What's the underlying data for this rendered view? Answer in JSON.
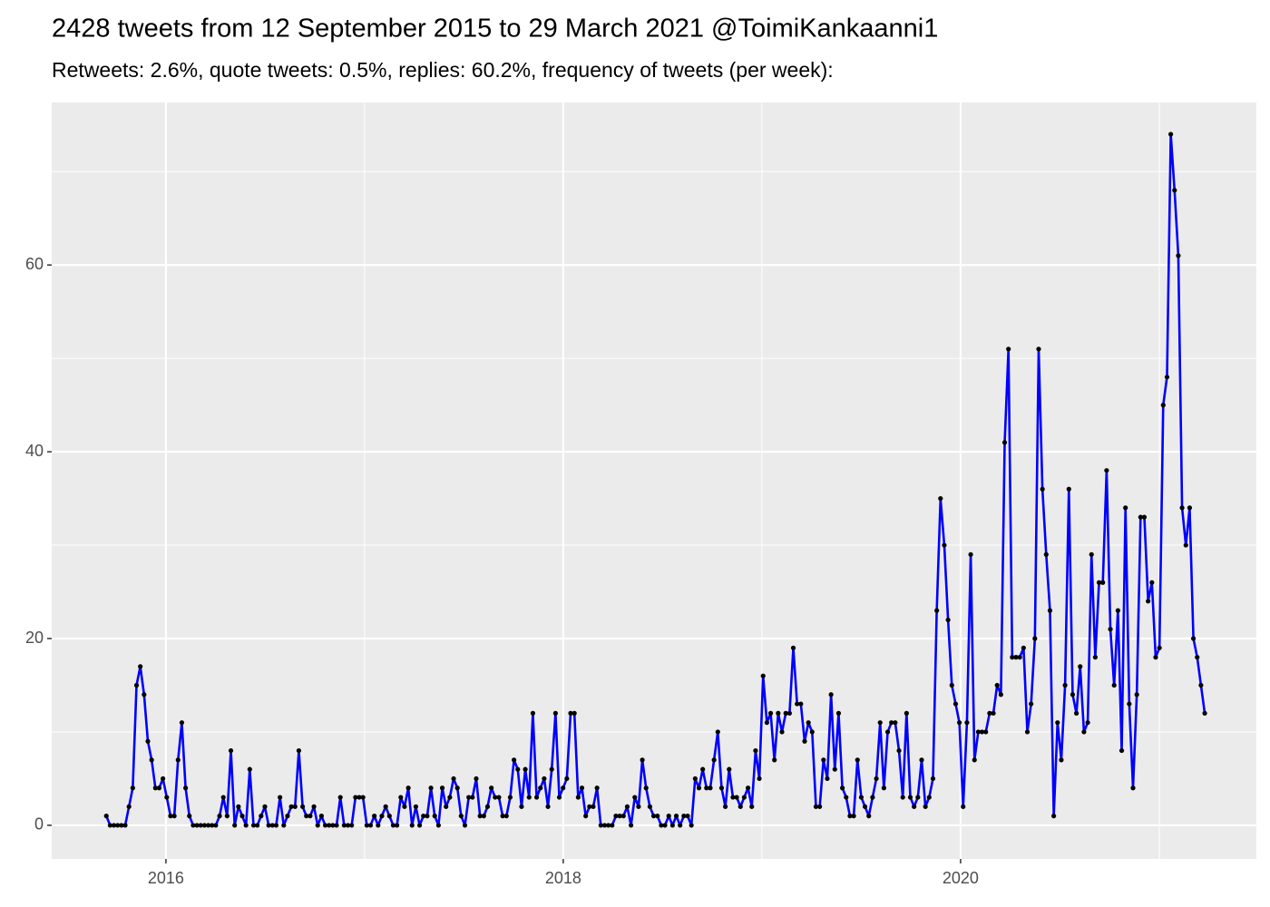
{
  "chart_data": {
    "type": "line",
    "title": "2428 tweets from 12 September 2015 to 29 March 2021 @ToimiKankaanni1",
    "subtitle": "Retweets: 2.6%, quote tweets: 0.5%, replies: 60.2%, frequency of tweets (per week):",
    "x": [
      2015.7,
      2015.719,
      2015.738,
      2015.757,
      2015.776,
      2015.795,
      2015.814,
      2015.833,
      2015.852,
      2015.871,
      2015.89,
      2015.909,
      2015.928,
      2015.947,
      2015.966,
      2015.985,
      2016.004,
      2016.023,
      2016.042,
      2016.061,
      2016.08,
      2016.099,
      2016.118,
      2016.137,
      2016.156,
      2016.175,
      2016.194,
      2016.213,
      2016.232,
      2016.251,
      2016.27,
      2016.289,
      2016.308,
      2016.327,
      2016.346,
      2016.365,
      2016.384,
      2016.403,
      2016.422,
      2016.441,
      2016.46,
      2016.479,
      2016.498,
      2016.517,
      2016.536,
      2016.555,
      2016.574,
      2016.593,
      2016.612,
      2016.631,
      2016.65,
      2016.669,
      2016.688,
      2016.707,
      2016.726,
      2016.745,
      2016.764,
      2016.783,
      2016.802,
      2016.821,
      2016.84,
      2016.859,
      2016.878,
      2016.897,
      2016.916,
      2016.935,
      2016.954,
      2016.973,
      2016.992,
      2017.011,
      2017.03,
      2017.049,
      2017.068,
      2017.087,
      2017.106,
      2017.125,
      2017.144,
      2017.163,
      2017.182,
      2017.201,
      2017.22,
      2017.239,
      2017.258,
      2017.277,
      2017.296,
      2017.315,
      2017.334,
      2017.353,
      2017.372,
      2017.391,
      2017.41,
      2017.429,
      2017.448,
      2017.467,
      2017.486,
      2017.505,
      2017.524,
      2017.543,
      2017.562,
      2017.581,
      2017.6,
      2017.619,
      2017.638,
      2017.657,
      2017.676,
      2017.695,
      2017.714,
      2017.733,
      2017.752,
      2017.771,
      2017.79,
      2017.809,
      2017.828,
      2017.847,
      2017.866,
      2017.885,
      2017.904,
      2017.923,
      2017.942,
      2017.961,
      2017.98,
      2017.999,
      2018.018,
      2018.037,
      2018.056,
      2018.075,
      2018.094,
      2018.113,
      2018.132,
      2018.151,
      2018.17,
      2018.189,
      2018.208,
      2018.227,
      2018.246,
      2018.265,
      2018.284,
      2018.303,
      2018.322,
      2018.341,
      2018.36,
      2018.379,
      2018.398,
      2018.417,
      2018.436,
      2018.455,
      2018.474,
      2018.493,
      2018.512,
      2018.531,
      2018.55,
      2018.569,
      2018.588,
      2018.607,
      2018.626,
      2018.645,
      2018.664,
      2018.683,
      2018.702,
      2018.721,
      2018.74,
      2018.759,
      2018.778,
      2018.797,
      2018.816,
      2018.835,
      2018.854,
      2018.873,
      2018.892,
      2018.911,
      2018.93,
      2018.949,
      2018.968,
      2018.987,
      2019.006,
      2019.025,
      2019.044,
      2019.063,
      2019.082,
      2019.101,
      2019.12,
      2019.139,
      2019.158,
      2019.177,
      2019.196,
      2019.215,
      2019.234,
      2019.253,
      2019.272,
      2019.291,
      2019.31,
      2019.329,
      2019.348,
      2019.367,
      2019.386,
      2019.405,
      2019.424,
      2019.443,
      2019.462,
      2019.481,
      2019.5,
      2019.519,
      2019.538,
      2019.557,
      2019.576,
      2019.595,
      2019.614,
      2019.633,
      2019.652,
      2019.671,
      2019.69,
      2019.709,
      2019.728,
      2019.747,
      2019.766,
      2019.785,
      2019.804,
      2019.823,
      2019.842,
      2019.861,
      2019.88,
      2019.899,
      2019.918,
      2019.937,
      2019.956,
      2019.975,
      2019.994,
      2020.013,
      2020.032,
      2020.051,
      2020.07,
      2020.089,
      2020.108,
      2020.127,
      2020.146,
      2020.165,
      2020.184,
      2020.203,
      2020.222,
      2020.241,
      2020.26,
      2020.279,
      2020.298,
      2020.317,
      2020.336,
      2020.355,
      2020.374,
      2020.393,
      2020.412,
      2020.431,
      2020.45,
      2020.469,
      2020.488,
      2020.507,
      2020.526,
      2020.545,
      2020.564,
      2020.583,
      2020.602,
      2020.621,
      2020.64,
      2020.659,
      2020.678,
      2020.697,
      2020.716,
      2020.735,
      2020.754,
      2020.773,
      2020.792,
      2020.811,
      2020.83,
      2020.849,
      2020.868,
      2020.887,
      2020.906,
      2020.925,
      2020.944,
      2020.963,
      2020.982,
      2021.001,
      2021.02,
      2021.039,
      2021.058,
      2021.077,
      2021.096,
      2021.115,
      2021.134,
      2021.153,
      2021.172,
      2021.191,
      2021.21,
      2021.229
    ],
    "values": [
      1,
      0,
      0,
      0,
      0,
      0,
      2,
      4,
      15,
      17,
      14,
      9,
      7,
      4,
      4,
      5,
      3,
      1,
      1,
      7,
      11,
      4,
      1,
      0,
      0,
      0,
      0,
      0,
      0,
      0,
      1,
      3,
      1,
      8,
      0,
      2,
      1,
      0,
      6,
      0,
      0,
      1,
      2,
      0,
      0,
      0,
      3,
      0,
      1,
      2,
      2,
      8,
      2,
      1,
      1,
      2,
      0,
      1,
      0,
      0,
      0,
      0,
      3,
      0,
      0,
      0,
      3,
      3,
      3,
      0,
      0,
      1,
      0,
      1,
      2,
      1,
      0,
      0,
      3,
      2,
      4,
      0,
      2,
      0,
      1,
      1,
      4,
      1,
      0,
      4,
      2,
      3,
      5,
      4,
      1,
      0,
      3,
      3,
      5,
      1,
      1,
      2,
      4,
      3,
      3,
      1,
      1,
      3,
      7,
      6,
      2,
      6,
      3,
      12,
      3,
      4,
      5,
      2,
      6,
      12,
      3,
      4,
      5,
      12,
      12,
      3,
      4,
      1,
      2,
      2,
      4,
      0,
      0,
      0,
      0,
      1,
      1,
      1,
      2,
      0,
      3,
      2,
      7,
      4,
      2,
      1,
      1,
      0,
      0,
      1,
      0,
      1,
      0,
      1,
      1,
      0,
      5,
      4,
      6,
      4,
      4,
      7,
      10,
      4,
      2,
      6,
      3,
      3,
      2,
      3,
      4,
      2,
      8,
      5,
      16,
      11,
      12,
      7,
      12,
      10,
      12,
      12,
      19,
      13,
      13,
      9,
      11,
      10,
      2,
      2,
      7,
      5,
      14,
      6,
      12,
      4,
      3,
      1,
      1,
      7,
      3,
      2,
      1,
      3,
      5,
      11,
      4,
      10,
      11,
      11,
      8,
      3,
      12,
      3,
      2,
      3,
      7,
      2,
      3,
      5,
      23,
      35,
      30,
      22,
      15,
      13,
      11,
      2,
      11,
      29,
      7,
      10,
      10,
      10,
      12,
      12,
      15,
      14,
      41,
      51,
      18,
      18,
      18,
      19,
      10,
      13,
      20,
      51,
      36,
      29,
      23,
      1,
      11,
      7,
      15,
      36,
      14,
      12,
      17,
      10,
      11,
      29,
      18,
      26,
      26,
      38,
      21,
      15,
      23,
      8,
      34,
      13,
      4,
      14,
      33,
      33,
      24,
      26,
      18,
      19,
      45,
      48,
      74,
      68,
      61,
      34,
      30,
      34,
      20,
      18,
      15,
      12
    ],
    "color": "#0000ff",
    "marker_color": "#000000",
    "xlim": [
      2015.425,
      2021.489
    ],
    "xticks": [
      2016,
      2018,
      2020
    ],
    "x_minor_grid": [
      2017,
      2019,
      2021
    ],
    "ylim": [
      -3.6,
      77.4
    ],
    "yticks": [
      0,
      20,
      40,
      60
    ],
    "y_minor_grid": [
      10,
      30,
      50,
      70
    ],
    "grid": true
  }
}
